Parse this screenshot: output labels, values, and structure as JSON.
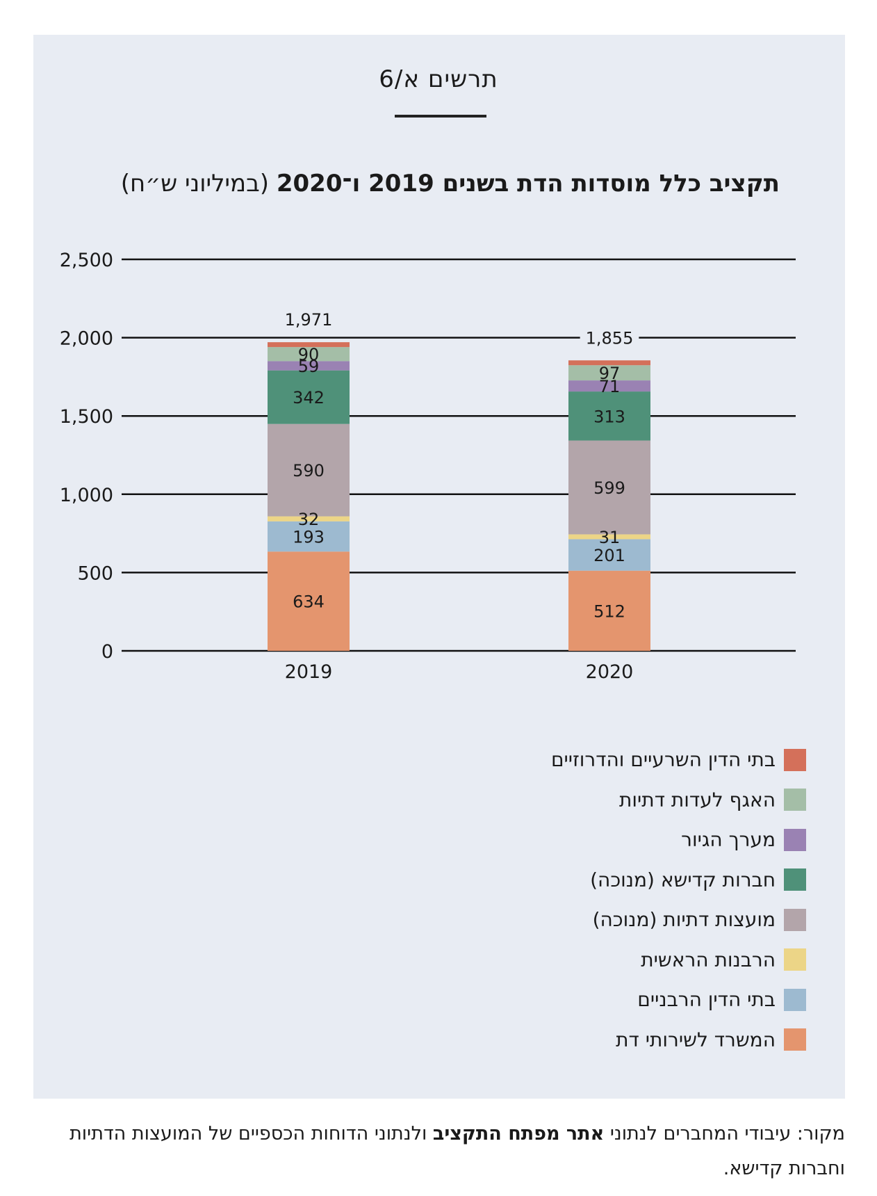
{
  "figure_label": "תרשים א/6",
  "title_bold": "תקציב כלל מוסדות הדת בשנים 2019 ו־2020",
  "title_unit": "(במיליוני ש״ח)",
  "source": {
    "prefix": "מקור: עיבודי המחברים לנתוני ",
    "bold": "אתר מפתח התקציב",
    "suffix": " ולנתוני הדוחות הכספיים של המועצות הדתיות וחברות קדישא."
  },
  "chart_data": {
    "type": "bar",
    "stacked": true,
    "categories": [
      "2019",
      "2020"
    ],
    "ylim": [
      0,
      2500
    ],
    "yticks": [
      0,
      500,
      1000,
      1500,
      2000,
      2500
    ],
    "ytick_labels": [
      "0",
      "500",
      "1,000",
      "1,500",
      "2,000",
      "2,500"
    ],
    "totals": [
      1971,
      1855
    ],
    "total_labels": [
      "1,971",
      "1,855"
    ],
    "grid": true,
    "legend_position": "bottom-right",
    "series": [
      {
        "name": "המשרד לשירותי דת",
        "color": "#e4956e",
        "values": [
          634,
          512
        ],
        "labels": [
          "634",
          "512"
        ]
      },
      {
        "name": "בתי הדין הרבניים",
        "color": "#9dbad0",
        "values": [
          193,
          201
        ],
        "labels": [
          "193",
          "201"
        ]
      },
      {
        "name": "הרבנות הראשית",
        "color": "#ecd587",
        "values": [
          32,
          31
        ],
        "labels": [
          "32",
          "31"
        ]
      },
      {
        "name": "מועצות דתיות (מנוכה)",
        "color": "#b3a5aa",
        "values": [
          590,
          599
        ],
        "labels": [
          "590",
          "599"
        ]
      },
      {
        "name": "חברות קדישא (מנוכה)",
        "color": "#4f9179",
        "values": [
          342,
          313
        ],
        "labels": [
          "342",
          "313"
        ]
      },
      {
        "name": "מערך הגיור",
        "color": "#9a82b3",
        "values": [
          59,
          71
        ],
        "labels": [
          "59",
          "71"
        ]
      },
      {
        "name": "האגף לעדות דתיות",
        "color": "#a4bea7",
        "values": [
          90,
          97
        ],
        "labels": [
          "90",
          "97"
        ]
      },
      {
        "name": "בתי הדין השרעיים והדרוזיים",
        "color": "#d4705a",
        "values": [
          31,
          31
        ],
        "labels": [
          "",
          ""
        ]
      }
    ]
  }
}
